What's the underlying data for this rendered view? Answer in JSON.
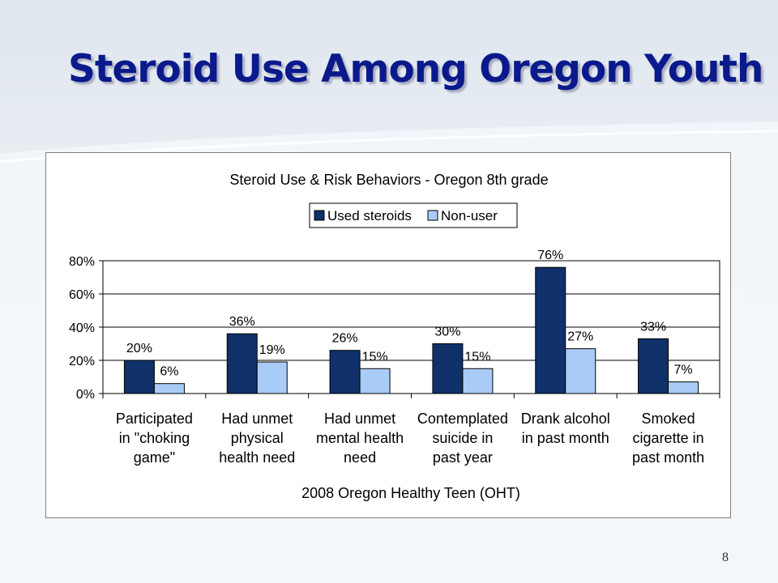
{
  "slide": {
    "title": "Steroid Use Among Oregon Youth",
    "page_number": "8"
  },
  "colors": {
    "title": "#0a1a8c",
    "used": "#10306a",
    "nonuser": "#a8ccf6"
  },
  "chart_data": {
    "type": "bar",
    "title": "Steroid Use & Risk Behaviors - Oregon 8th grade",
    "xlabel": "2008 Oregon Healthy Teen (OHT)",
    "ylabel": "",
    "ylim": [
      0,
      80
    ],
    "yticks": [
      "0%",
      "20%",
      "40%",
      "60%",
      "80%"
    ],
    "grid": true,
    "legend_position": "top-center",
    "categories": [
      [
        "Participated",
        "in \"choking",
        "game\""
      ],
      [
        "Had unmet",
        "physical",
        "health need"
      ],
      [
        "Had unmet",
        "mental health",
        "need"
      ],
      [
        "Contemplated",
        "suicide in",
        "past year"
      ],
      [
        "Drank alcohol",
        "in past month"
      ],
      [
        "Smoked",
        "cigarette in",
        "past month"
      ]
    ],
    "series": [
      {
        "name": "Used steroids",
        "values": [
          20,
          36,
          26,
          30,
          76,
          33
        ],
        "labels": [
          "20%",
          "36%",
          "26%",
          "30%",
          "76%",
          "33%"
        ]
      },
      {
        "name": "Non-user",
        "values": [
          6,
          19,
          15,
          15,
          27,
          7
        ],
        "labels": [
          "6%",
          "19%",
          "15%",
          "15%",
          "27%",
          "7%"
        ]
      }
    ]
  }
}
